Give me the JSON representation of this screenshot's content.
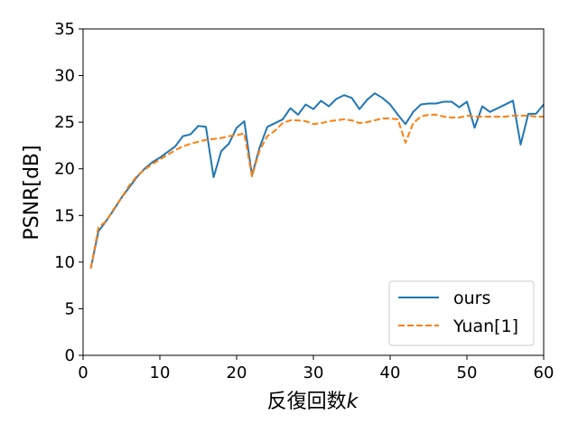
{
  "chart_data": {
    "type": "line",
    "xlabel": "反復回数",
    "xlabel_var": "k",
    "ylabel": "PSNR[dB]",
    "xlim": [
      0,
      60
    ],
    "ylim": [
      0,
      35
    ],
    "xticks": [
      0,
      10,
      20,
      30,
      40,
      50,
      60
    ],
    "yticks": [
      0,
      5,
      10,
      15,
      20,
      25,
      30,
      35
    ],
    "grid": false,
    "legend_position": "lower-right",
    "x": [
      1,
      2,
      3,
      4,
      5,
      6,
      7,
      8,
      9,
      10,
      11,
      12,
      13,
      14,
      15,
      16,
      17,
      18,
      19,
      20,
      21,
      22,
      23,
      24,
      25,
      26,
      27,
      28,
      29,
      30,
      31,
      32,
      33,
      34,
      35,
      36,
      37,
      38,
      39,
      40,
      41,
      42,
      43,
      44,
      45,
      46,
      47,
      48,
      49,
      50,
      51,
      52,
      53,
      54,
      55,
      56,
      57,
      58,
      59,
      60
    ],
    "series": [
      {
        "name": "ours",
        "color": "#1f77b4",
        "dash": "solid",
        "values": [
          9.3,
          13.3,
          14.4,
          15.6,
          16.9,
          18.0,
          19.1,
          20.0,
          20.7,
          21.2,
          21.8,
          22.4,
          23.5,
          23.7,
          24.6,
          24.5,
          19.1,
          21.9,
          22.7,
          24.4,
          25.1,
          19.3,
          22.3,
          24.5,
          24.9,
          25.3,
          26.5,
          25.8,
          26.9,
          26.4,
          27.3,
          26.7,
          27.5,
          27.9,
          27.6,
          26.4,
          27.4,
          28.1,
          27.6,
          26.9,
          25.8,
          24.8,
          26.1,
          26.9,
          27.0,
          27.0,
          27.2,
          27.2,
          26.6,
          27.2,
          24.4,
          26.7,
          26.1,
          26.5,
          26.9,
          27.3,
          22.6,
          25.9,
          25.9,
          26.9
        ]
      },
      {
        "name": "Yuan[1]",
        "color": "#ff7f0e",
        "dash": "dashed",
        "values": [
          9.3,
          13.7,
          14.4,
          15.7,
          16.9,
          18.2,
          19.2,
          19.9,
          20.5,
          21.0,
          21.5,
          22.0,
          22.4,
          22.7,
          22.9,
          23.1,
          23.2,
          23.3,
          23.5,
          23.6,
          23.8,
          19.2,
          22.0,
          23.5,
          24.1,
          24.9,
          25.2,
          25.2,
          25.1,
          24.8,
          24.9,
          25.1,
          25.2,
          25.3,
          25.2,
          24.9,
          25.0,
          25.2,
          25.4,
          25.4,
          25.3,
          22.8,
          24.9,
          25.6,
          25.8,
          25.8,
          25.6,
          25.5,
          25.5,
          25.7,
          25.6,
          25.6,
          25.6,
          25.6,
          25.6,
          25.7,
          25.7,
          25.7,
          25.6,
          25.6
        ]
      }
    ]
  }
}
